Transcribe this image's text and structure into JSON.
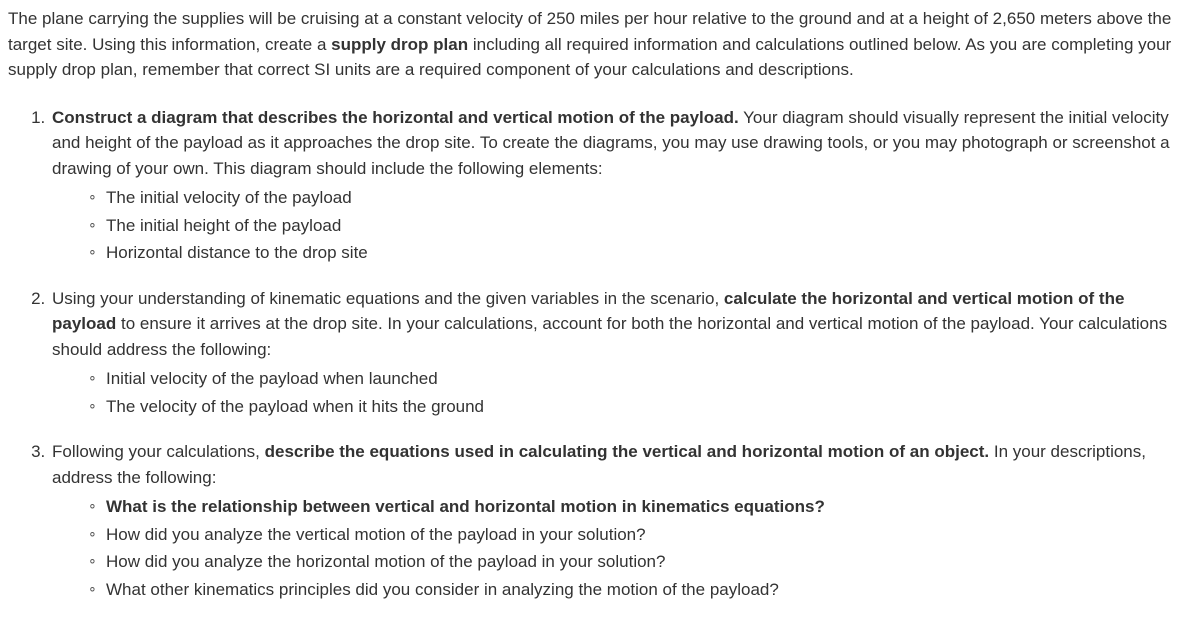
{
  "intro": {
    "p1_a": "The plane carrying the supplies will be cruising at a constant velocity of 250 miles per hour relative to the ground and at a height of 2,650 meters above the target site. Using this information, create a ",
    "p1_bold": "supply drop plan",
    "p1_b": " including all required information and calculations outlined below. As you are completing your supply drop plan, remember that correct SI units are a required component of your calculations and descriptions."
  },
  "items": {
    "q1": {
      "lead_bold": "Construct a diagram that describes the horizontal and vertical motion of the payload.",
      "lead_rest": " Your diagram should visually represent the initial velocity and height of the payload as it approaches the drop site. To create the diagrams, you may use drawing tools, or you may photograph or screenshot a drawing of your own. This diagram should include the following elements:",
      "subs": [
        "The initial velocity of the payload",
        "The initial height of the payload",
        "Horizontal distance to the drop site"
      ]
    },
    "q2": {
      "lead_a": "Using your understanding of kinematic equations and the given variables in the scenario, ",
      "lead_bold": "calculate the horizontal and vertical motion of the payload",
      "lead_b": " to ensure it arrives at the drop site. In your calculations, account for both the horizontal and vertical motion of the payload. Your calculations should address the following:",
      "subs": [
        "Initial velocity of the payload when launched",
        "The velocity of the payload when it hits the ground"
      ]
    },
    "q3": {
      "lead_a": "Following your calculations, ",
      "lead_bold": "describe the equations used in calculating the vertical and horizontal motion of an object.",
      "lead_b": " In your descriptions, address the following:",
      "sub_bold": "What is the relationship between vertical and horizontal motion in kinematics equations?",
      "subs_rest": [
        "How did you analyze the vertical motion of the payload in your solution?",
        "How did you analyze the horizontal motion of the payload in your solution?",
        "What other kinematics principles did you consider in analyzing the motion of the payload?"
      ]
    }
  }
}
